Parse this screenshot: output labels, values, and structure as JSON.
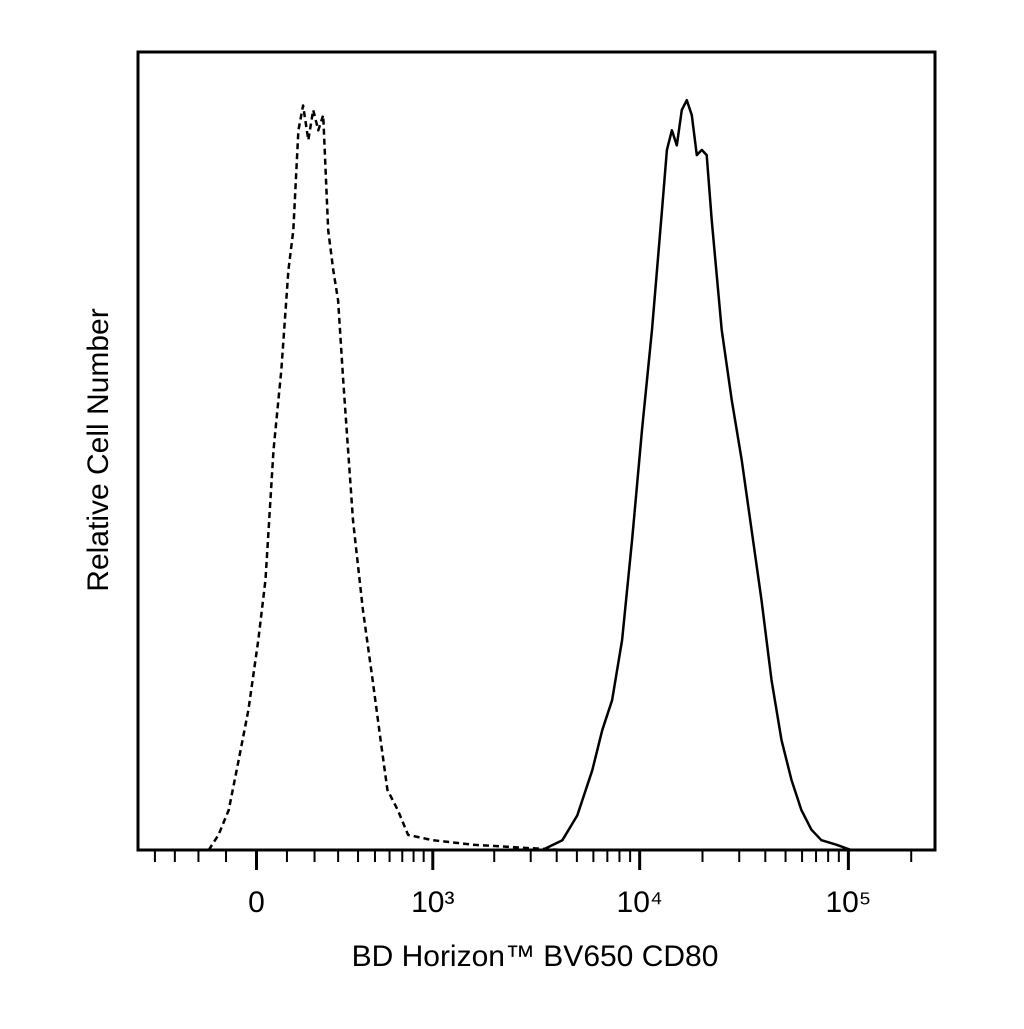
{
  "chart_data": {
    "type": "line",
    "xlabel": "BD Horizon™ BV650 CD80",
    "ylabel": "Relative Cell Number",
    "xscale": "asinh",
    "xlim": [
      -500,
      260000
    ],
    "ylim": [
      0,
      106
    ],
    "xticks": [
      {
        "value": 0,
        "label": "0"
      },
      {
        "value": 1000,
        "label": "10³"
      },
      {
        "value": 10000,
        "label": "10⁴"
      },
      {
        "value": 100000,
        "label": "10⁵"
      }
    ],
    "minor_xticks": [
      -400,
      -300,
      -200,
      -100,
      100,
      200,
      300,
      400,
      500,
      600,
      700,
      800,
      900,
      2000,
      3000,
      4000,
      5000,
      6000,
      7000,
      8000,
      9000,
      20000,
      30000,
      40000,
      50000,
      60000,
      70000,
      80000,
      90000,
      200000
    ],
    "series": [
      {
        "color": "#000000",
        "dashed": true,
        "x": [
          -161,
          -126,
          -91,
          -58,
          -26,
          6,
          29,
          55,
          81,
          105,
          122,
          140,
          157,
          176,
          195,
          215,
          235,
          256,
          278,
          300,
          324,
          348,
          373,
          427,
          485,
          537,
          584,
          663,
          750,
          999,
          1571,
          2739,
          4260
        ],
        "values": [
          0,
          2.0,
          5.3,
          11.9,
          18.6,
          27.9,
          35.9,
          53.1,
          63.7,
          77.0,
          82.3,
          95.6,
          98.9,
          94.3,
          98.3,
          95.6,
          97.6,
          82.3,
          77.0,
          73.0,
          62.4,
          53.1,
          43.8,
          31.9,
          22.6,
          14.6,
          8.0,
          5.3,
          2.0,
          1.3,
          0.7,
          0.3,
          0
        ]
      },
      {
        "color": "#000000",
        "dashed": false,
        "x": [
          3410,
          4260,
          5025,
          5925,
          6615,
          7375,
          8235,
          9195,
          10260,
          11460,
          12790,
          13500,
          14265,
          15070,
          15920,
          16820,
          17770,
          18780,
          19840,
          20960,
          22140,
          24730,
          27600,
          30810,
          34390,
          38370,
          42830,
          47810,
          53370,
          59570,
          66490,
          74220,
          87540,
          103100
        ],
        "values": [
          0,
          1.3,
          4.6,
          10.6,
          15.9,
          19.9,
          27.9,
          41.2,
          55.8,
          69.1,
          85.0,
          93.0,
          95.6,
          93.6,
          98.3,
          99.6,
          97.6,
          92.3,
          93.0,
          92.3,
          83.7,
          69.1,
          59.8,
          51.8,
          42.5,
          33.2,
          22.6,
          14.6,
          9.3,
          5.3,
          2.7,
          1.3,
          0.7,
          0
        ]
      }
    ]
  }
}
